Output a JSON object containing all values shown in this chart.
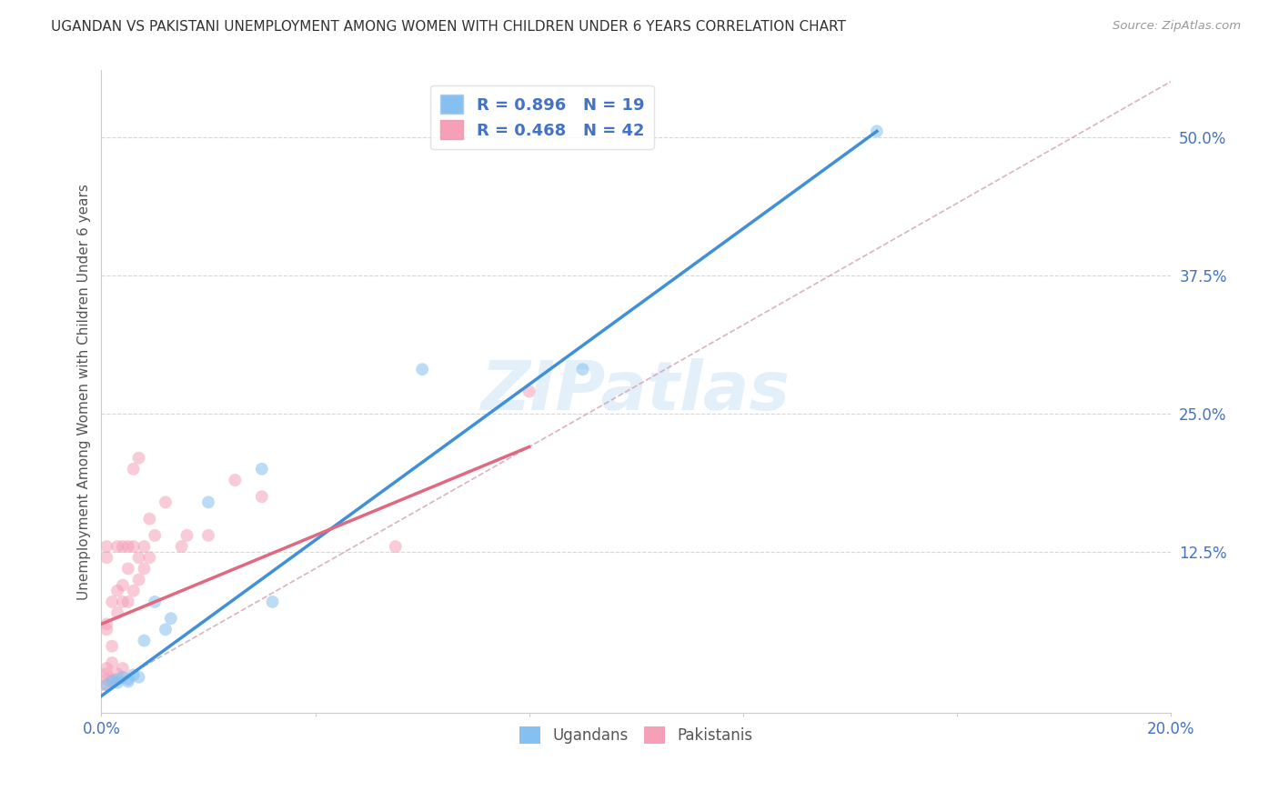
{
  "title": "UGANDAN VS PAKISTANI UNEMPLOYMENT AMONG WOMEN WITH CHILDREN UNDER 6 YEARS CORRELATION CHART",
  "source": "Source: ZipAtlas.com",
  "ylabel": "Unemployment Among Women with Children Under 6 years",
  "watermark": "ZIPatlas",
  "xlim": [
    0.0,
    0.2
  ],
  "ylim": [
    -0.02,
    0.56
  ],
  "xticks": [
    0.0,
    0.04,
    0.08,
    0.12,
    0.16,
    0.2
  ],
  "xtick_labels": [
    "0.0%",
    "",
    "",
    "",
    "",
    "20.0%"
  ],
  "ytick_labels": [
    "12.5%",
    "25.0%",
    "37.5%",
    "50.0%"
  ],
  "yticks": [
    0.125,
    0.25,
    0.375,
    0.5
  ],
  "ugandan_r": 0.896,
  "ugandan_n": 19,
  "pakistani_r": 0.468,
  "pakistani_n": 42,
  "ugandan_color": "#85c0f0",
  "pakistani_color": "#f5a0b8",
  "ugandan_line_color": "#4090d8",
  "pakistani_line_color": "#e06880",
  "diagonal_color": "#d0a0b0",
  "text_color": "#4472c4",
  "title_color": "#333333",
  "grid_color": "#d8d8d8",
  "background": "#ffffff",
  "ugandan_points": [
    [
      0.001,
      0.005
    ],
    [
      0.002,
      0.008
    ],
    [
      0.003,
      0.01
    ],
    [
      0.003,
      0.007
    ],
    [
      0.004,
      0.012
    ],
    [
      0.005,
      0.01
    ],
    [
      0.005,
      0.008
    ],
    [
      0.006,
      0.014
    ],
    [
      0.007,
      0.012
    ],
    [
      0.008,
      0.045
    ],
    [
      0.01,
      0.08
    ],
    [
      0.012,
      0.055
    ],
    [
      0.013,
      0.065
    ],
    [
      0.02,
      0.17
    ],
    [
      0.03,
      0.2
    ],
    [
      0.032,
      0.08
    ],
    [
      0.06,
      0.29
    ],
    [
      0.09,
      0.29
    ],
    [
      0.145,
      0.505
    ]
  ],
  "pakistani_points": [
    [
      0.001,
      0.005
    ],
    [
      0.001,
      0.01
    ],
    [
      0.001,
      0.015
    ],
    [
      0.001,
      0.02
    ],
    [
      0.001,
      0.055
    ],
    [
      0.001,
      0.06
    ],
    [
      0.001,
      0.12
    ],
    [
      0.001,
      0.13
    ],
    [
      0.002,
      0.01
    ],
    [
      0.002,
      0.025
    ],
    [
      0.002,
      0.04
    ],
    [
      0.002,
      0.08
    ],
    [
      0.003,
      0.015
    ],
    [
      0.003,
      0.07
    ],
    [
      0.003,
      0.09
    ],
    [
      0.003,
      0.13
    ],
    [
      0.004,
      0.02
    ],
    [
      0.004,
      0.08
    ],
    [
      0.004,
      0.095
    ],
    [
      0.004,
      0.13
    ],
    [
      0.005,
      0.08
    ],
    [
      0.005,
      0.11
    ],
    [
      0.005,
      0.13
    ],
    [
      0.006,
      0.09
    ],
    [
      0.006,
      0.13
    ],
    [
      0.006,
      0.2
    ],
    [
      0.007,
      0.1
    ],
    [
      0.007,
      0.12
    ],
    [
      0.007,
      0.21
    ],
    [
      0.008,
      0.11
    ],
    [
      0.008,
      0.13
    ],
    [
      0.009,
      0.12
    ],
    [
      0.009,
      0.155
    ],
    [
      0.01,
      0.14
    ],
    [
      0.012,
      0.17
    ],
    [
      0.015,
      0.13
    ],
    [
      0.016,
      0.14
    ],
    [
      0.02,
      0.14
    ],
    [
      0.025,
      0.19
    ],
    [
      0.03,
      0.175
    ],
    [
      0.055,
      0.13
    ],
    [
      0.08,
      0.27
    ]
  ],
  "ugandan_line": [
    [
      0.0,
      -0.005
    ],
    [
      0.145,
      0.505
    ]
  ],
  "pakistani_line": [
    [
      0.0,
      0.06
    ],
    [
      0.08,
      0.22
    ]
  ],
  "diagonal_line": [
    [
      0.0,
      0.0
    ],
    [
      0.2,
      0.55
    ]
  ],
  "marker_size": 100,
  "alpha": 0.55,
  "figsize": [
    14.06,
    8.92
  ],
  "dpi": 100
}
